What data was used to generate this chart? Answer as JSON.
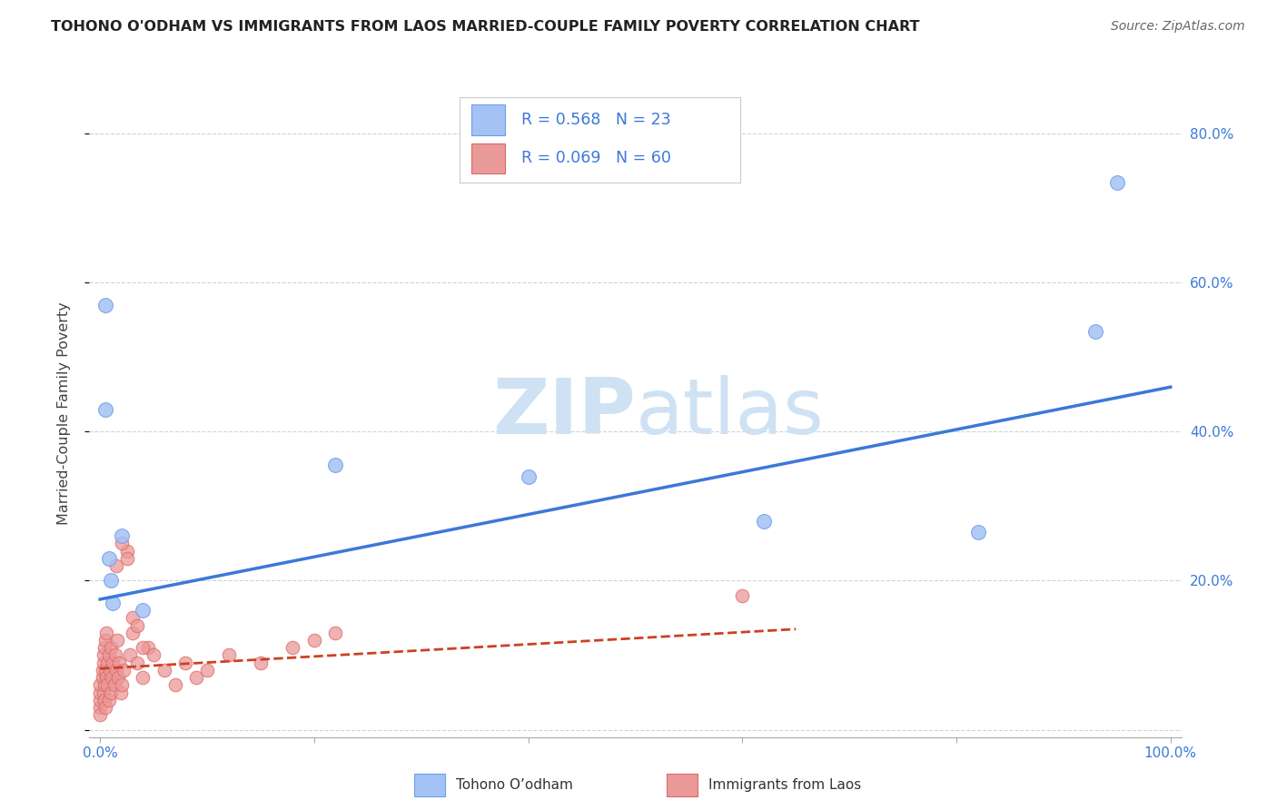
{
  "title": "TOHONO O'ODHAM VS IMMIGRANTS FROM LAOS MARRIED-COUPLE FAMILY POVERTY CORRELATION CHART",
  "source": "Source: ZipAtlas.com",
  "xlabel_blue": "Tohono O’odham",
  "xlabel_pink": "Immigrants from Laos",
  "ylabel": "Married-Couple Family Poverty",
  "blue_R": 0.568,
  "blue_N": 23,
  "pink_R": 0.069,
  "pink_N": 60,
  "blue_scatter_x": [
    0.005,
    0.005,
    0.008,
    0.01,
    0.012,
    0.02,
    0.04,
    0.22,
    0.4,
    0.62,
    0.82,
    0.93,
    0.95
  ],
  "blue_scatter_y": [
    0.57,
    0.43,
    0.23,
    0.2,
    0.17,
    0.26,
    0.16,
    0.355,
    0.34,
    0.28,
    0.265,
    0.535,
    0.735
  ],
  "pink_scatter_x": [
    0.0,
    0.0,
    0.0,
    0.0,
    0.0,
    0.002,
    0.002,
    0.003,
    0.003,
    0.003,
    0.004,
    0.004,
    0.004,
    0.005,
    0.005,
    0.005,
    0.006,
    0.006,
    0.007,
    0.007,
    0.008,
    0.008,
    0.009,
    0.01,
    0.01,
    0.011,
    0.012,
    0.013,
    0.014,
    0.015,
    0.016,
    0.017,
    0.018,
    0.019,
    0.02,
    0.022,
    0.025,
    0.028,
    0.03,
    0.035,
    0.04,
    0.045,
    0.05,
    0.06,
    0.07,
    0.08,
    0.09,
    0.1,
    0.12,
    0.15,
    0.18,
    0.2,
    0.22,
    0.6,
    0.015,
    0.02,
    0.025,
    0.03,
    0.035,
    0.04
  ],
  "pink_scatter_y": [
    0.03,
    0.04,
    0.05,
    0.06,
    0.02,
    0.07,
    0.08,
    0.05,
    0.09,
    0.1,
    0.06,
    0.11,
    0.04,
    0.08,
    0.12,
    0.03,
    0.07,
    0.13,
    0.06,
    0.09,
    0.1,
    0.04,
    0.08,
    0.11,
    0.05,
    0.07,
    0.09,
    0.06,
    0.1,
    0.08,
    0.12,
    0.07,
    0.09,
    0.05,
    0.06,
    0.08,
    0.24,
    0.1,
    0.13,
    0.09,
    0.07,
    0.11,
    0.1,
    0.08,
    0.06,
    0.09,
    0.07,
    0.08,
    0.1,
    0.09,
    0.11,
    0.12,
    0.13,
    0.18,
    0.22,
    0.25,
    0.23,
    0.15,
    0.14,
    0.11
  ],
  "blue_line_x": [
    0.0,
    1.0
  ],
  "blue_line_y": [
    0.175,
    0.46
  ],
  "pink_line_x": [
    0.0,
    0.65
  ],
  "pink_line_y": [
    0.082,
    0.135
  ],
  "xlim": [
    -0.01,
    1.01
  ],
  "ylim": [
    -0.01,
    0.86
  ],
  "xticks": [
    0.0,
    0.2,
    0.4,
    0.6,
    0.8,
    1.0
  ],
  "xtick_labels": [
    "0.0%",
    "",
    "",
    "",
    "",
    "100.0%"
  ],
  "yticks": [
    0.0,
    0.2,
    0.4,
    0.6,
    0.8
  ],
  "ytick_labels_right": [
    "",
    "20.0%",
    "40.0%",
    "60.0%",
    "80.0%"
  ],
  "blue_color": "#a4c2f4",
  "blue_edge_color": "#6d9eeb",
  "blue_line_color": "#3c78d8",
  "pink_color": "#ea9999",
  "pink_edge_color": "#e06666",
  "pink_line_color": "#cc4125",
  "legend_blue_fill": "#a4c2f4",
  "legend_blue_edge": "#6d9eeb",
  "legend_pink_fill": "#ea9999",
  "legend_pink_edge": "#e06666",
  "watermark_color": "#cfe2f3",
  "background_color": "#ffffff",
  "grid_color": "#b7b7b7"
}
